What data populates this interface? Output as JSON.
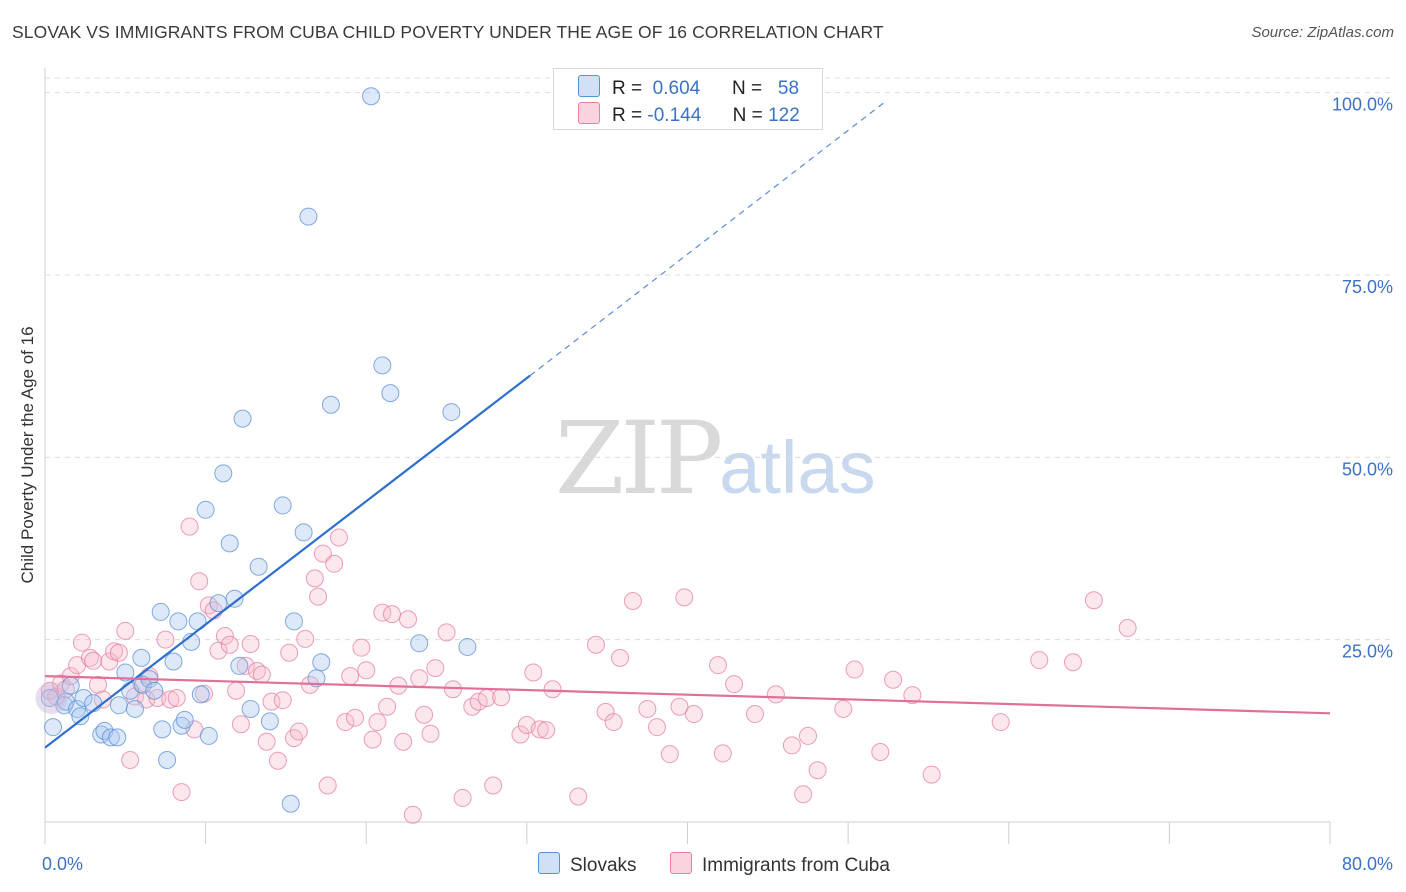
{
  "title": "SLOVAK VS IMMIGRANTS FROM CUBA CHILD POVERTY UNDER THE AGE OF 16 CORRELATION CHART",
  "source": "Source: ZipAtlas.com",
  "watermark": {
    "zip": "ZIP",
    "atlas": "atlas"
  },
  "legend": {
    "rows": [
      {
        "r_label": "R =",
        "r_value": "0.604",
        "n_label": "N =",
        "n_value": "58",
        "color": "#a9c8f0"
      },
      {
        "r_label": "R =",
        "r_value": "-0.144",
        "n_label": "N =",
        "n_value": "122",
        "color": "#f7b9cc"
      }
    ]
  },
  "bottom_legend": {
    "series1": "Slovaks",
    "series2": "Immigrants from Cuba"
  },
  "colors": {
    "blue_fill": "#a9c8f0",
    "blue_stroke": "#5b8fd6",
    "blue_line": "#2f6fcf",
    "pink_fill": "#f7b9cc",
    "pink_stroke": "#e77fa0",
    "pink_line": "#e0709a",
    "grid": "#dcdcdc",
    "tick_text": "#3c72c4"
  },
  "chart_data": {
    "type": "scatter",
    "title": "SLOVAK VS IMMIGRANTS FROM CUBA CHILD POVERTY UNDER THE AGE OF 16 CORRELATION CHART",
    "xlabel": "",
    "ylabel": "Child Poverty Under the Age of 16",
    "xlim": [
      0,
      80
    ],
    "ylim": [
      0,
      102
    ],
    "x_tick_labels": [
      "0.0%",
      "80.0%"
    ],
    "y_ticks": [
      25,
      50,
      75,
      100
    ],
    "y_tick_labels": [
      "25.0%",
      "50.0%",
      "75.0%",
      "100.0%"
    ],
    "grid": true,
    "legend_position": "top-center",
    "series": [
      {
        "name": "Slovaks",
        "r": 0.604,
        "n": 58,
        "trend": {
          "x0": 0,
          "y0": 10.2,
          "x1": 30.2,
          "y1": 61.2,
          "dashed_to_x": 52.4,
          "dashed_to_y": 98.9
        },
        "points": [
          [
            0.3,
            17
          ],
          [
            0.5,
            13
          ],
          [
            1.2,
            16
          ],
          [
            1.3,
            16.5
          ],
          [
            1.6,
            18.7
          ],
          [
            2,
            15.5
          ],
          [
            2.2,
            14.5
          ],
          [
            2.4,
            17
          ],
          [
            3,
            16.3
          ],
          [
            3.5,
            12
          ],
          [
            3.7,
            12.5
          ],
          [
            4.1,
            11.6
          ],
          [
            4.5,
            11.6
          ],
          [
            4.6,
            16
          ],
          [
            5,
            20.5
          ],
          [
            5.3,
            18
          ],
          [
            5.6,
            15.5
          ],
          [
            6,
            22.5
          ],
          [
            6.1,
            18.8
          ],
          [
            6.5,
            19.6
          ],
          [
            6.8,
            18
          ],
          [
            7.2,
            28.8
          ],
          [
            7.3,
            12.7
          ],
          [
            7.6,
            8.5
          ],
          [
            8,
            22
          ],
          [
            8.3,
            27.5
          ],
          [
            8.5,
            13.2
          ],
          [
            8.7,
            14
          ],
          [
            9.1,
            24.7
          ],
          [
            9.5,
            27.5
          ],
          [
            9.7,
            17.5
          ],
          [
            10,
            42.8
          ],
          [
            10.2,
            11.8
          ],
          [
            10.8,
            30
          ],
          [
            11.1,
            47.8
          ],
          [
            11.5,
            38.2
          ],
          [
            11.8,
            30.6
          ],
          [
            12.1,
            21.4
          ],
          [
            12.3,
            55.3
          ],
          [
            12.8,
            15.5
          ],
          [
            13.3,
            35
          ],
          [
            14,
            13.8
          ],
          [
            14.8,
            43.4
          ],
          [
            15.3,
            2.5
          ],
          [
            15.5,
            27.5
          ],
          [
            16.1,
            39.7
          ],
          [
            16.4,
            83
          ],
          [
            16.9,
            19.7
          ],
          [
            17.2,
            21.9
          ],
          [
            17.8,
            57.2
          ],
          [
            20.3,
            99.5
          ],
          [
            21,
            62.6
          ],
          [
            21.5,
            58.8
          ],
          [
            23.3,
            24.5
          ],
          [
            25.3,
            56.2
          ],
          [
            26.3,
            24
          ]
        ]
      },
      {
        "name": "Immigrants from Cuba",
        "r": -0.144,
        "n": 122,
        "trend": {
          "x0": 0,
          "y0": 20,
          "x1": 80,
          "y1": 14.9
        },
        "points": [
          [
            0.3,
            18
          ],
          [
            0.7,
            17.2
          ],
          [
            1,
            19
          ],
          [
            1.3,
            18.2
          ],
          [
            1.6,
            20
          ],
          [
            2,
            21.5
          ],
          [
            2.3,
            24.6
          ],
          [
            2.8,
            22.5
          ],
          [
            3,
            22.1
          ],
          [
            3.3,
            18.8
          ],
          [
            3.6,
            16.8
          ],
          [
            4,
            22
          ],
          [
            4.3,
            23.4
          ],
          [
            4.6,
            23.2
          ],
          [
            5,
            26.2
          ],
          [
            5.3,
            8.5
          ],
          [
            5.6,
            17.2
          ],
          [
            6,
            18.9
          ],
          [
            6.3,
            16.8
          ],
          [
            6.5,
            20
          ],
          [
            7,
            17
          ],
          [
            7.5,
            25
          ],
          [
            7.8,
            16.8
          ],
          [
            8.2,
            17
          ],
          [
            8.5,
            4.1
          ],
          [
            9,
            40.5
          ],
          [
            9.3,
            12.7
          ],
          [
            9.6,
            33
          ],
          [
            9.9,
            17.6
          ],
          [
            10.2,
            29.7
          ],
          [
            10.5,
            29
          ],
          [
            10.8,
            23.5
          ],
          [
            11.2,
            25.5
          ],
          [
            11.5,
            24.3
          ],
          [
            11.9,
            18
          ],
          [
            12.2,
            13.4
          ],
          [
            12.5,
            21.4
          ],
          [
            12.8,
            24.4
          ],
          [
            13.2,
            20.7
          ],
          [
            13.5,
            20.2
          ],
          [
            13.8,
            11
          ],
          [
            14.1,
            16.5
          ],
          [
            14.5,
            8.4
          ],
          [
            14.8,
            16.7
          ],
          [
            15.2,
            23.2
          ],
          [
            15.5,
            11.5
          ],
          [
            15.8,
            12.4
          ],
          [
            16.2,
            25.1
          ],
          [
            16.5,
            18.8
          ],
          [
            16.8,
            33.4
          ],
          [
            17,
            30.9
          ],
          [
            17.3,
            36.8
          ],
          [
            17.6,
            5
          ],
          [
            18,
            35.4
          ],
          [
            18.3,
            39
          ],
          [
            18.7,
            13.7
          ],
          [
            19,
            20
          ],
          [
            19.3,
            14.3
          ],
          [
            19.7,
            23.9
          ],
          [
            20,
            20.8
          ],
          [
            20.4,
            11.3
          ],
          [
            20.7,
            13.7
          ],
          [
            21,
            28.7
          ],
          [
            21.3,
            15.8
          ],
          [
            21.6,
            28.5
          ],
          [
            22,
            18.7
          ],
          [
            22.3,
            11
          ],
          [
            22.6,
            27.8
          ],
          [
            22.9,
            1
          ],
          [
            23.3,
            19.7
          ],
          [
            23.6,
            14.7
          ],
          [
            24,
            12.1
          ],
          [
            24.3,
            21.1
          ],
          [
            25,
            26
          ],
          [
            25.4,
            18.2
          ],
          [
            26,
            3.3
          ],
          [
            26.6,
            15.8
          ],
          [
            27,
            16.5
          ],
          [
            27.5,
            17
          ],
          [
            27.9,
            5
          ],
          [
            28.4,
            17.1
          ],
          [
            29.6,
            12
          ],
          [
            30,
            13.3
          ],
          [
            30.4,
            20.5
          ],
          [
            30.8,
            12.7
          ],
          [
            31.2,
            12.6
          ],
          [
            31.6,
            18.2
          ],
          [
            33.2,
            3.5
          ],
          [
            34.3,
            24.3
          ],
          [
            34.9,
            15.1
          ],
          [
            35.4,
            13.7
          ],
          [
            35.8,
            22.5
          ],
          [
            36.6,
            30.3
          ],
          [
            37.5,
            15.5
          ],
          [
            38.1,
            13
          ],
          [
            38.9,
            9.3
          ],
          [
            39.5,
            15.8
          ],
          [
            39.8,
            30.8
          ],
          [
            40.4,
            14.8
          ],
          [
            41.9,
            21.5
          ],
          [
            42.2,
            9.4
          ],
          [
            42.9,
            18.9
          ],
          [
            44.2,
            14.8
          ],
          [
            45.5,
            17.5
          ],
          [
            46.5,
            10.5
          ],
          [
            47.2,
            3.8
          ],
          [
            47.5,
            11.8
          ],
          [
            48.1,
            7.1
          ],
          [
            49.7,
            15.5
          ],
          [
            50.4,
            20.9
          ],
          [
            52,
            9.6
          ],
          [
            52.8,
            19.5
          ],
          [
            54,
            17.4
          ],
          [
            55.2,
            6.5
          ],
          [
            59.5,
            13.7
          ],
          [
            61.9,
            22.2
          ],
          [
            64,
            21.9
          ],
          [
            65.3,
            30.4
          ],
          [
            67.4,
            26.6
          ]
        ]
      }
    ]
  }
}
